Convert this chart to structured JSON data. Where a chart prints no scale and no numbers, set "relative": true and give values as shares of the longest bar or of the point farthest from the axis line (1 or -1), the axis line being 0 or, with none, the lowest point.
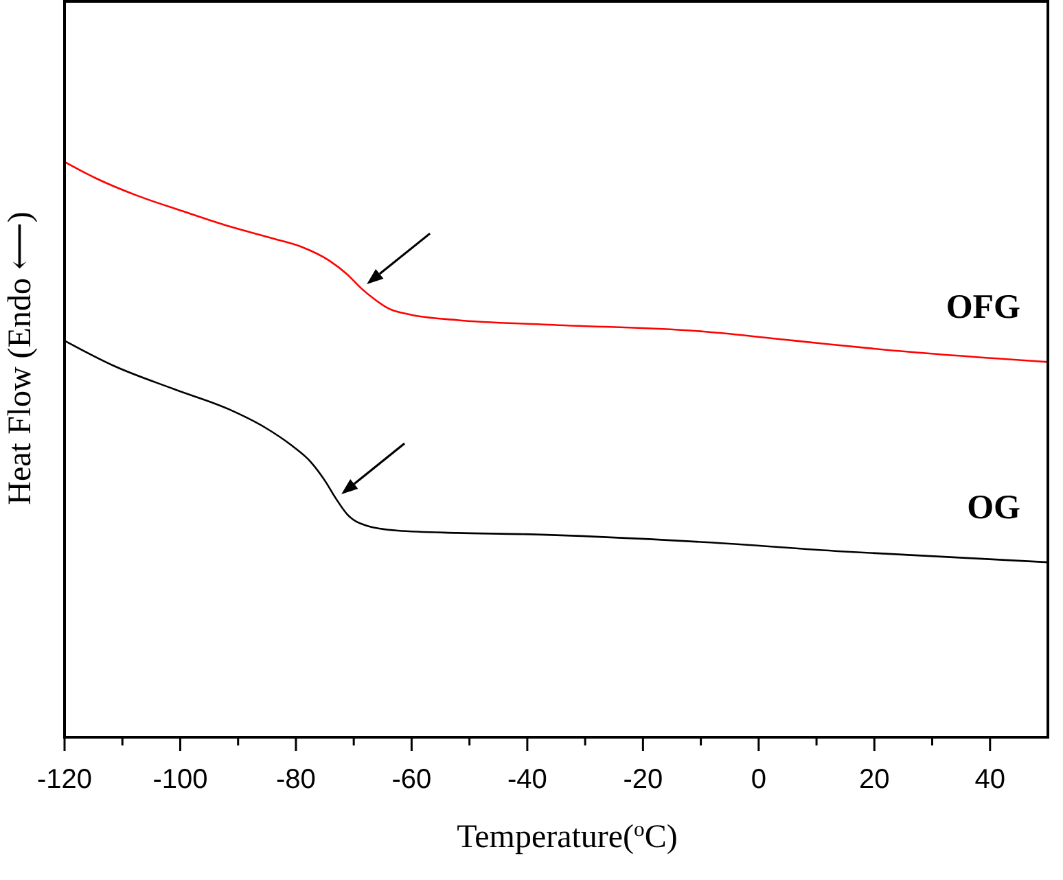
{
  "chart_data": {
    "type": "line",
    "xlabel": "Temperature($^{o}$C)",
    "ylabel": "Heat Flow (Endo ⟵)",
    "relative": true,
    "xlim": [
      -120,
      50
    ],
    "xticks": [
      -120,
      {
        "value": -110,
        "label": null
      },
      -100,
      {
        "value": -90,
        "label": null
      },
      -80,
      {
        "value": -70,
        "label": null
      },
      -60,
      {
        "value": -50,
        "label": null
      },
      -40,
      {
        "value": -30,
        "label": null
      },
      -20,
      {
        "value": -10,
        "label": null
      },
      0,
      {
        "value": 10,
        "label": null
      },
      20,
      {
        "value": 30,
        "label": null
      },
      40
    ],
    "series": [
      {
        "name": "OFG",
        "color": "#ff0000",
        "x": [
          -120,
          -114.5,
          -107.4,
          -99.5,
          -91.6,
          -83.7,
          -79,
          -74.2,
          -71.1,
          -68.7,
          -66.4,
          -64,
          -60,
          -52.2,
          -36.4,
          -9.5,
          6.3,
          22.1,
          50
        ],
        "values": [
          1,
          0.971,
          0.941,
          0.914,
          0.888,
          0.866,
          0.852,
          0.828,
          0.804,
          0.78,
          0.761,
          0.745,
          0.734,
          0.725,
          0.717,
          0.705,
          0.689,
          0.673,
          0.652
        ]
      },
      {
        "name": "OG",
        "color": "#000000",
        "x": [
          -120,
          -111.4,
          -101.1,
          -91.6,
          -85.3,
          -80.6,
          -77.4,
          -75,
          -73.1,
          -71.1,
          -67.9,
          -62.4,
          -52.2,
          -41.1,
          -9.5,
          14.2,
          50
        ],
        "values": [
          0.689,
          0.645,
          0.605,
          0.57,
          0.538,
          0.506,
          0.478,
          0.446,
          0.415,
          0.387,
          0.368,
          0.359,
          0.355,
          0.353,
          0.339,
          0.323,
          0.304
        ]
      }
    ]
  }
}
